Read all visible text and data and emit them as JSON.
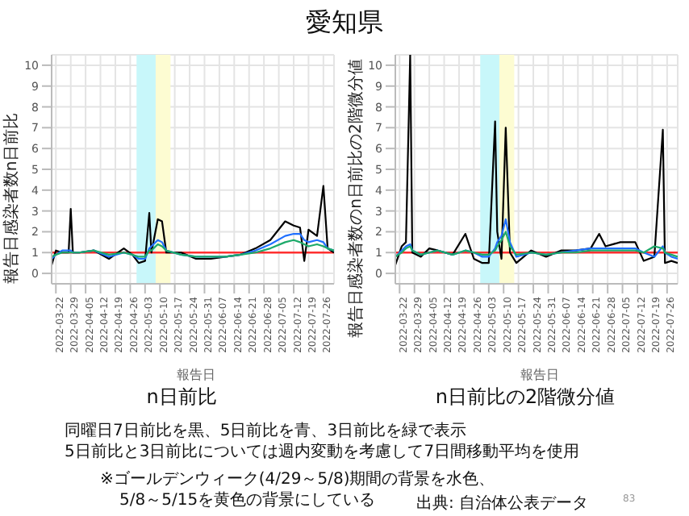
{
  "chart_data": [
    {
      "type": "line",
      "title": "愛知県",
      "subtitle": "n日前比",
      "xlabel": "報告日",
      "ylabel": "報告日感染者数n日前比",
      "x": [
        "2022-03-20",
        "2022-03-22",
        "2022-03-25",
        "2022-03-28",
        "2022-03-29",
        "2022-03-30",
        "2022-04-02",
        "2022-04-09",
        "2022-04-16",
        "2022-04-23",
        "2022-04-27",
        "2022-04-30",
        "2022-05-03",
        "2022-05-05",
        "2022-05-06",
        "2022-05-09",
        "2022-05-11",
        "2022-05-13",
        "2022-05-20",
        "2022-05-27",
        "2022-06-03",
        "2022-06-10",
        "2022-06-17",
        "2022-06-24",
        "2022-07-01",
        "2022-07-08",
        "2022-07-12",
        "2022-07-15",
        "2022-07-17",
        "2022-07-19",
        "2022-07-23",
        "2022-07-26",
        "2022-07-28",
        "2022-07-31"
      ],
      "series": [
        {
          "color": "#000000",
          "values": [
            0.4,
            1.1,
            1.0,
            1.0,
            3.1,
            1.0,
            1.0,
            1.1,
            0.7,
            1.2,
            0.9,
            0.5,
            0.6,
            2.9,
            1.0,
            2.6,
            2.5,
            1.0,
            1.0,
            0.7,
            0.7,
            0.8,
            0.9,
            1.2,
            1.6,
            2.5,
            2.3,
            2.2,
            0.6,
            2.1,
            1.8,
            4.2,
            1.2,
            1.0
          ]
        },
        {
          "color": "#1f6fff",
          "values": [
            0.7,
            0.9,
            1.1,
            1.1,
            1.1,
            1.0,
            1.0,
            1.1,
            0.8,
            1.0,
            0.9,
            0.7,
            0.7,
            1.2,
            1.3,
            1.6,
            1.5,
            1.1,
            0.9,
            0.8,
            0.8,
            0.8,
            0.9,
            1.1,
            1.4,
            1.8,
            1.9,
            1.9,
            1.6,
            1.5,
            1.6,
            1.5,
            1.2,
            1.1
          ]
        },
        {
          "color": "#1daa6a",
          "values": [
            0.8,
            0.9,
            1.0,
            1.0,
            1.0,
            1.0,
            1.0,
            1.1,
            0.9,
            1.0,
            0.9,
            0.8,
            0.8,
            1.1,
            1.1,
            1.4,
            1.3,
            1.1,
            0.9,
            0.8,
            0.8,
            0.8,
            0.9,
            1.0,
            1.2,
            1.5,
            1.6,
            1.5,
            1.4,
            1.3,
            1.4,
            1.3,
            1.2,
            1.1
          ]
        }
      ],
      "xlim": [
        "2022-03-20",
        "2022-07-31"
      ],
      "xticks": [
        "2022-03-22",
        "2022-03-29",
        "2022-04-05",
        "2022-04-12",
        "2022-04-19",
        "2022-04-26",
        "2022-05-03",
        "2022-05-10",
        "2022-05-17",
        "2022-05-24",
        "2022-05-31",
        "2022-06-07",
        "2022-06-14",
        "2022-06-21",
        "2022-06-28",
        "2022-07-05",
        "2022-07-12",
        "2022-07-19",
        "2022-07-26"
      ],
      "ylim": [
        -0.5,
        10.5
      ],
      "yticks": [
        0,
        1,
        2,
        3,
        4,
        5,
        6,
        7,
        8,
        9,
        10
      ],
      "grid": true,
      "ref_lines": [
        {
          "axis": "y",
          "value": 1,
          "color": "#ff3030"
        }
      ],
      "bands": [
        {
          "axis": "x",
          "from": "2022-04-29",
          "to": "2022-05-08",
          "color": "#c8f7fa"
        },
        {
          "axis": "x",
          "from": "2022-05-08",
          "to": "2022-05-15",
          "color": "#fdfcd2"
        }
      ]
    },
    {
      "type": "line",
      "subtitle": "n日前比の2階微分値",
      "xlabel": "報告日",
      "ylabel": "報告日感染者数のn日前比の2階微分値",
      "annotations": [
        "同曜日7日前比を黒、5日前比を青、3日前比を緑で表示",
        "5日前比と3日前比については週内変動を考慮して7日間移動平均を使用",
        "※ゴールデンウィーク(4/29～5/8)期間の背景を水色、",
        "5/8～5/15を黄色の背景にしている",
        "出典: 自治体公表データ",
        "83"
      ],
      "x": [
        "2022-03-20",
        "2022-03-23",
        "2022-03-25",
        "2022-03-27",
        "2022-03-28",
        "2022-04-01",
        "2022-04-05",
        "2022-04-09",
        "2022-04-16",
        "2022-04-22",
        "2022-04-26",
        "2022-04-30",
        "2022-05-03",
        "2022-05-06",
        "2022-05-07",
        "2022-05-09",
        "2022-05-11",
        "2022-05-13",
        "2022-05-16",
        "2022-05-23",
        "2022-05-30",
        "2022-06-06",
        "2022-06-13",
        "2022-06-20",
        "2022-06-24",
        "2022-06-27",
        "2022-07-04",
        "2022-07-11",
        "2022-07-15",
        "2022-07-20",
        "2022-07-24",
        "2022-07-25",
        "2022-07-28",
        "2022-07-31"
      ],
      "series": [
        {
          "color": "#000000",
          "values": [
            0.4,
            1.3,
            1.5,
            10.5,
            1.0,
            0.8,
            1.2,
            1.1,
            0.9,
            1.9,
            0.7,
            0.5,
            0.5,
            7.3,
            2.0,
            0.7,
            7.0,
            1.0,
            0.5,
            1.1,
            0.8,
            1.1,
            1.1,
            1.2,
            1.9,
            1.3,
            1.5,
            1.5,
            0.6,
            0.8,
            6.9,
            0.5,
            0.6,
            0.5
          ]
        },
        {
          "color": "#1f6fff",
          "values": [
            0.8,
            1.1,
            1.3,
            1.4,
            1.1,
            0.9,
            1.0,
            1.1,
            0.9,
            1.1,
            1.0,
            0.8,
            0.8,
            1.2,
            1.5,
            1.8,
            2.6,
            1.5,
            0.8,
            1.0,
            0.9,
            1.0,
            1.1,
            1.2,
            1.2,
            1.2,
            1.2,
            1.2,
            1.0,
            0.8,
            1.3,
            1.0,
            0.8,
            0.7
          ]
        },
        {
          "color": "#1daa6a",
          "values": [
            0.8,
            1.0,
            1.2,
            1.3,
            1.1,
            0.9,
            1.0,
            1.1,
            0.9,
            1.1,
            1.0,
            0.9,
            0.9,
            1.1,
            1.3,
            1.6,
            2.0,
            1.3,
            0.9,
            1.0,
            0.9,
            1.0,
            1.0,
            1.1,
            1.1,
            1.1,
            1.1,
            1.1,
            1.0,
            1.3,
            1.2,
            1.0,
            0.9,
            0.8
          ]
        }
      ],
      "xlim": [
        "2022-03-20",
        "2022-07-31"
      ],
      "xticks": [
        "2022-03-22",
        "2022-03-29",
        "2022-04-05",
        "2022-04-12",
        "2022-04-19",
        "2022-04-26",
        "2022-05-03",
        "2022-05-10",
        "2022-05-17",
        "2022-05-24",
        "2022-05-31",
        "2022-06-07",
        "2022-06-14",
        "2022-06-21",
        "2022-06-28",
        "2022-07-05",
        "2022-07-12",
        "2022-07-19",
        "2022-07-26"
      ],
      "ylim": [
        -0.5,
        10.5
      ],
      "yticks": [
        0,
        1,
        2,
        3,
        4,
        5,
        6,
        7,
        8,
        9,
        10
      ],
      "grid": true,
      "ref_lines": [
        {
          "axis": "y",
          "value": 1,
          "color": "#ff3030"
        }
      ],
      "bands": [
        {
          "axis": "x",
          "from": "2022-04-29",
          "to": "2022-05-08",
          "color": "#c8f7fa"
        },
        {
          "axis": "x",
          "from": "2022-05-08",
          "to": "2022-05-15",
          "color": "#fdfcd2"
        }
      ]
    }
  ]
}
